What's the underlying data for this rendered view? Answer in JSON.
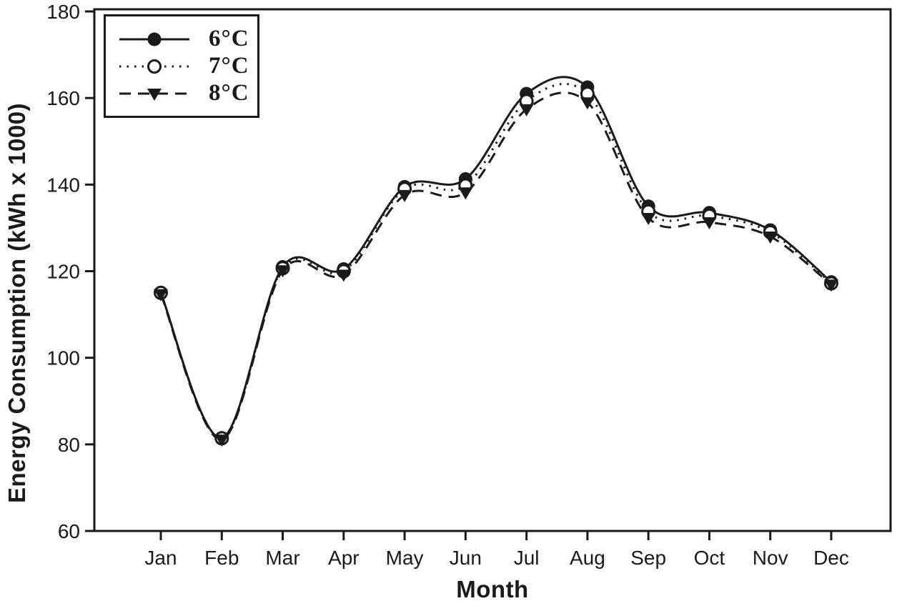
{
  "chart_data": {
    "type": "line",
    "title": "",
    "xlabel": "Month",
    "ylabel": "Energy Consumption (kWh x 1000)",
    "categories": [
      "Jan",
      "Feb",
      "Mar",
      "Apr",
      "May",
      "Jun",
      "Jul",
      "Aug",
      "Sep",
      "Oct",
      "Nov",
      "Dec"
    ],
    "ylim": [
      60,
      180
    ],
    "yticks": [
      60,
      80,
      100,
      120,
      140,
      160,
      180
    ],
    "grid": false,
    "legend_position": "top-left-inside",
    "ink_color": "#1a1a1a",
    "background_color": "#ffffff",
    "series": [
      {
        "name": "6°C",
        "line_style": "solid",
        "marker": "filled-circle",
        "values": [
          115,
          81.5,
          121,
          120.5,
          139.5,
          141.3,
          161,
          162.5,
          135,
          133.5,
          129.5,
          117.5
        ]
      },
      {
        "name": "7°C",
        "line_style": "dotted",
        "marker": "open-circle",
        "values": [
          115,
          81.4,
          120.7,
          120,
          139,
          139.8,
          159.3,
          161,
          133.8,
          132.8,
          129,
          117.2
        ]
      },
      {
        "name": "8°C",
        "line_style": "dashed",
        "marker": "filled-triangle-down",
        "values": [
          114.7,
          81.1,
          120.2,
          119.2,
          137.6,
          138.2,
          157.4,
          159,
          132.3,
          131.3,
          128,
          116.9
        ]
      }
    ]
  }
}
